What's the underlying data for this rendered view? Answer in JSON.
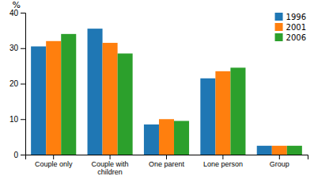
{
  "chart_data": {
    "type": "bar",
    "categories": [
      "Couple only",
      "Couple with children",
      "One parent",
      "Lone person",
      "Group"
    ],
    "series": [
      {
        "name": "1996",
        "values": [
          30.5,
          35.5,
          8.5,
          21.5,
          2.5
        ]
      },
      {
        "name": "2001",
        "values": [
          32.0,
          31.5,
          10.0,
          23.5,
          2.5
        ]
      },
      {
        "name": "2006",
        "values": [
          34.0,
          28.5,
          9.5,
          24.5,
          2.5
        ]
      }
    ],
    "y_label": "%",
    "ylim": [
      0,
      40
    ],
    "yticks": [
      0,
      10,
      20,
      30,
      40
    ],
    "grid": false,
    "legend": "upper right"
  }
}
